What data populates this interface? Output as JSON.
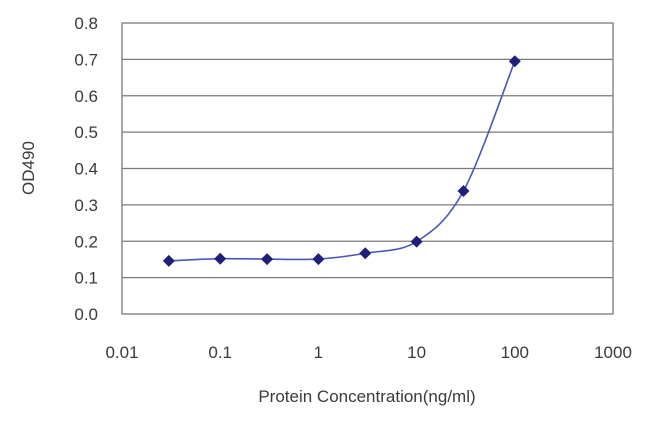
{
  "chart_data": {
    "type": "line",
    "title": "",
    "xlabel": "Protein Concentration(ng/ml)",
    "ylabel": "OD490",
    "x_scale": "log",
    "xlim": [
      0.01,
      1000
    ],
    "ylim": [
      0.0,
      0.8
    ],
    "x_ticks": [
      "0.01",
      "0.1",
      "1",
      "10",
      "100",
      "1000"
    ],
    "y_ticks": [
      "0.0",
      "0.1",
      "0.2",
      "0.3",
      "0.4",
      "0.5",
      "0.6",
      "0.7",
      "0.8"
    ],
    "grid": "horizontal",
    "legend": "none",
    "series": [
      {
        "x": [
          0.03,
          0.1,
          0.3,
          1,
          3,
          10,
          30,
          100
        ],
        "y": [
          0.146,
          0.152,
          0.151,
          0.151,
          0.167,
          0.199,
          0.338,
          0.695
        ],
        "marker": "diamond",
        "color": "#1f1f7a",
        "line_color": "#4a56b8"
      }
    ]
  }
}
